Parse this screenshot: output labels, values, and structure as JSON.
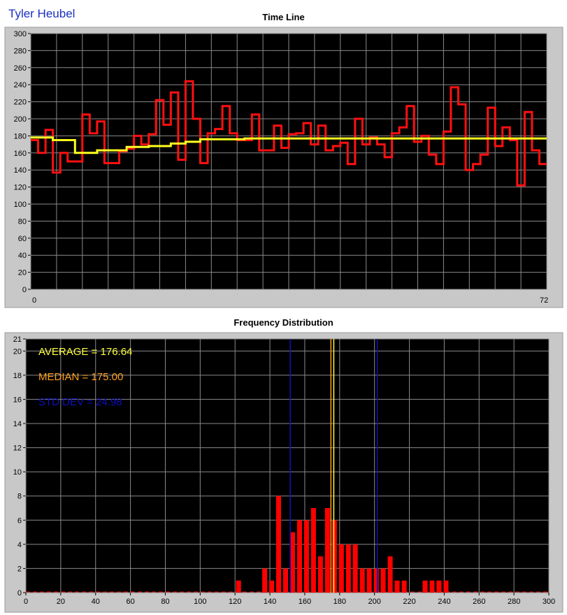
{
  "header": {
    "user_name": "Tyler Heubel"
  },
  "colors": {
    "plot_bg": "#000000",
    "frame": "#c8c8c8",
    "grid": "#8a8a8a",
    "timeline_line": "#ff1010",
    "running_avg_line": "#ffff20",
    "bars": "#ff0000",
    "average": "#ffff40",
    "median": "#ffa020",
    "std_dev": "#1010c0"
  },
  "chart_data": [
    {
      "type": "line",
      "title": "Time Line",
      "xlabel": "",
      "ylabel": "",
      "xlim": [
        0,
        72
      ],
      "ylim": [
        0,
        300
      ],
      "x_ticks": [
        "0",
        "72"
      ],
      "y_ticks": [
        "0",
        "20",
        "40",
        "60",
        "80",
        "100",
        "120",
        "140",
        "160",
        "180",
        "200",
        "220",
        "240",
        "260",
        "280",
        "300"
      ],
      "grid": true,
      "interpolation": "step",
      "series": [
        {
          "values": [
            175,
            160,
            187,
            137,
            160,
            150,
            150,
            205,
            183,
            197,
            148,
            148,
            162,
            165,
            180,
            170,
            182,
            222,
            193,
            231,
            152,
            244,
            200,
            148,
            183,
            188,
            215,
            183,
            175,
            175,
            205,
            163,
            163,
            192,
            166,
            182,
            183,
            195,
            170,
            192,
            163,
            168,
            172,
            147,
            200,
            170,
            178,
            170,
            155,
            183,
            190,
            215,
            173,
            180,
            158,
            147,
            185,
            237,
            217,
            140,
            147,
            158,
            213,
            168,
            190,
            175,
            122,
            208,
            163,
            147
          ],
          "color": "red"
        },
        {
          "values": [
            178,
            178,
            178,
            175,
            175,
            175,
            160,
            160,
            160,
            163,
            163,
            163,
            163,
            167,
            167,
            167,
            168,
            168,
            168,
            171,
            171,
            173,
            173,
            176,
            176,
            176,
            176,
            176,
            176,
            177,
            177,
            177,
            177,
            177,
            177,
            177,
            177,
            177,
            177,
            177,
            177,
            177,
            177,
            177,
            177,
            177,
            177,
            177,
            177,
            177,
            177,
            177,
            177,
            177,
            177,
            177,
            177,
            177,
            177,
            177,
            177,
            177,
            177,
            177,
            177,
            177,
            177,
            177,
            177,
            177
          ],
          "color": "yellow"
        }
      ]
    },
    {
      "type": "bar",
      "title": "Frequency Distribution",
      "xlabel": "",
      "ylabel": "",
      "xlim": [
        0,
        300
      ],
      "ylim": [
        0,
        21
      ],
      "x_ticks": [
        "0",
        "20",
        "40",
        "60",
        "80",
        "100",
        "120",
        "140",
        "160",
        "180",
        "200",
        "220",
        "240",
        "260",
        "280",
        "300"
      ],
      "y_ticks": [
        "0",
        "2",
        "4",
        "6",
        "8",
        "10",
        "12",
        "14",
        "16",
        "18",
        "20",
        "21"
      ],
      "grid": true,
      "bin_centers": [
        122,
        137,
        141,
        145,
        149,
        153,
        157,
        161,
        165,
        169,
        173,
        177,
        181,
        185,
        189,
        193,
        197,
        201,
        205,
        209,
        213,
        217,
        221,
        229,
        233,
        237,
        241
      ],
      "values": [
        1,
        2,
        1,
        8,
        2,
        5,
        6,
        6,
        7,
        3,
        7,
        6,
        4,
        4,
        4,
        2,
        2,
        2,
        2,
        3,
        1,
        1,
        0,
        1,
        1,
        1,
        1
      ],
      "lines": [
        {
          "label": "AVERAGE = 176.64",
          "value": 176.64,
          "color": "yellow"
        },
        {
          "label": "MEDIAN = 175.00",
          "value": 175.0,
          "color": "orange"
        },
        {
          "label": "STD DEV = 24.98",
          "value": 24.98,
          "color": "blue"
        }
      ]
    }
  ]
}
